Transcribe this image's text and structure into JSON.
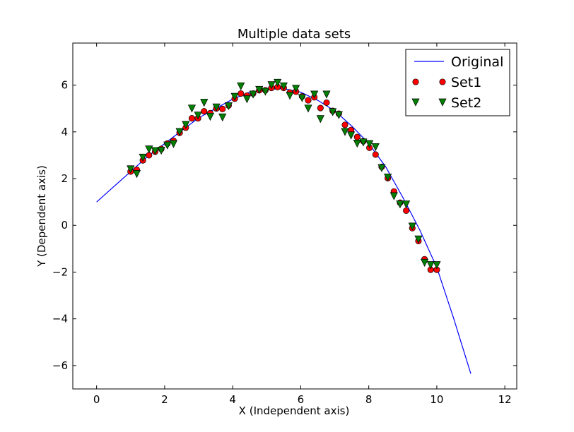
{
  "chart_data": {
    "type": "scatter",
    "title": "Multiple data sets",
    "xlabel": "X (Independent axis)",
    "ylabel": "Y (Dependent axis)",
    "xlim": [
      -0.7,
      12.35
    ],
    "ylim": [
      -7.0,
      7.8
    ],
    "xticks": [
      0,
      2,
      4,
      6,
      8,
      10,
      12
    ],
    "yticks": [
      -6,
      -4,
      -2,
      0,
      2,
      4,
      6
    ],
    "xtick_labels": [
      "0",
      "2",
      "4",
      "6",
      "8",
      "10",
      "12"
    ],
    "ytick_labels": [
      "−6",
      "−4",
      "−2",
      "0",
      "2",
      "4",
      "6"
    ],
    "grid": false,
    "legend": "top-right",
    "series": [
      {
        "name": "Original",
        "kind": "line",
        "color": "#0000ff",
        "x": [
          0,
          0.5,
          1,
          1.5,
          2,
          2.5,
          3,
          3.5,
          4,
          4.5,
          5,
          5.5,
          6,
          6.5,
          7,
          7.5,
          8,
          8.5,
          9,
          9.5,
          10,
          10.5,
          11
        ],
        "y": [
          1.0,
          1.65,
          2.3,
          2.95,
          3.5,
          4.05,
          4.6,
          5.0,
          5.4,
          5.7,
          5.82,
          5.85,
          5.7,
          5.35,
          4.9,
          4.25,
          3.5,
          2.5,
          1.2,
          -0.2,
          -1.8,
          -4.0,
          -6.35
        ]
      },
      {
        "name": "Set1",
        "kind": "markers",
        "marker": "circle",
        "color": "#ff0000",
        "x": [
          1.0,
          1.18,
          1.36,
          1.54,
          1.72,
          1.9,
          2.08,
          2.26,
          2.44,
          2.62,
          2.8,
          2.98,
          3.16,
          3.34,
          3.52,
          3.7,
          3.88,
          4.06,
          4.24,
          4.42,
          4.6,
          4.78,
          4.96,
          5.14,
          5.32,
          5.5,
          5.68,
          5.86,
          6.04,
          6.22,
          6.4,
          6.58,
          6.76,
          6.94,
          7.12,
          7.3,
          7.48,
          7.66,
          7.84,
          8.02,
          8.2,
          8.38,
          8.56,
          8.74,
          8.92,
          9.1,
          9.28,
          9.46,
          9.64,
          9.82,
          10.0
        ],
        "y": [
          2.3,
          2.38,
          2.78,
          3.0,
          3.15,
          3.27,
          3.5,
          3.62,
          3.96,
          4.18,
          4.58,
          4.58,
          4.88,
          4.8,
          5.0,
          4.98,
          5.13,
          5.42,
          5.64,
          5.55,
          5.64,
          5.78,
          5.78,
          5.88,
          5.92,
          5.88,
          5.68,
          5.72,
          5.52,
          5.35,
          5.48,
          5.02,
          5.25,
          4.9,
          4.78,
          4.3,
          4.08,
          3.78,
          3.6,
          3.32,
          3.03,
          2.5,
          2.02,
          1.45,
          0.97,
          0.63,
          -0.12,
          -0.67,
          -1.45,
          -1.9,
          -1.9
        ]
      },
      {
        "name": "Set2",
        "kind": "markers",
        "marker": "triangle-down",
        "color": "#008000",
        "x": [
          1.0,
          1.18,
          1.36,
          1.54,
          1.72,
          1.9,
          2.08,
          2.26,
          2.44,
          2.62,
          2.8,
          2.98,
          3.16,
          3.34,
          3.52,
          3.7,
          3.88,
          4.06,
          4.24,
          4.42,
          4.6,
          4.78,
          4.96,
          5.14,
          5.32,
          5.5,
          5.68,
          5.86,
          6.04,
          6.22,
          6.4,
          6.58,
          6.76,
          6.94,
          7.12,
          7.3,
          7.48,
          7.66,
          7.84,
          8.02,
          8.2,
          8.38,
          8.56,
          8.74,
          8.92,
          9.1,
          9.28,
          9.46,
          9.64,
          9.82,
          10.0
        ],
        "y": [
          2.4,
          2.2,
          2.9,
          3.25,
          3.18,
          3.2,
          3.42,
          3.48,
          4.0,
          4.3,
          5.0,
          4.7,
          5.25,
          4.65,
          5.05,
          4.62,
          5.1,
          5.5,
          5.95,
          5.4,
          5.6,
          5.8,
          5.72,
          6.0,
          6.1,
          5.95,
          5.55,
          5.85,
          5.45,
          5.0,
          5.6,
          4.55,
          5.6,
          4.85,
          4.72,
          4.0,
          3.85,
          3.5,
          3.55,
          3.48,
          3.35,
          2.45,
          2.05,
          1.25,
          0.9,
          0.9,
          -0.05,
          -0.6,
          -1.6,
          -1.7,
          -1.7
        ]
      }
    ]
  }
}
